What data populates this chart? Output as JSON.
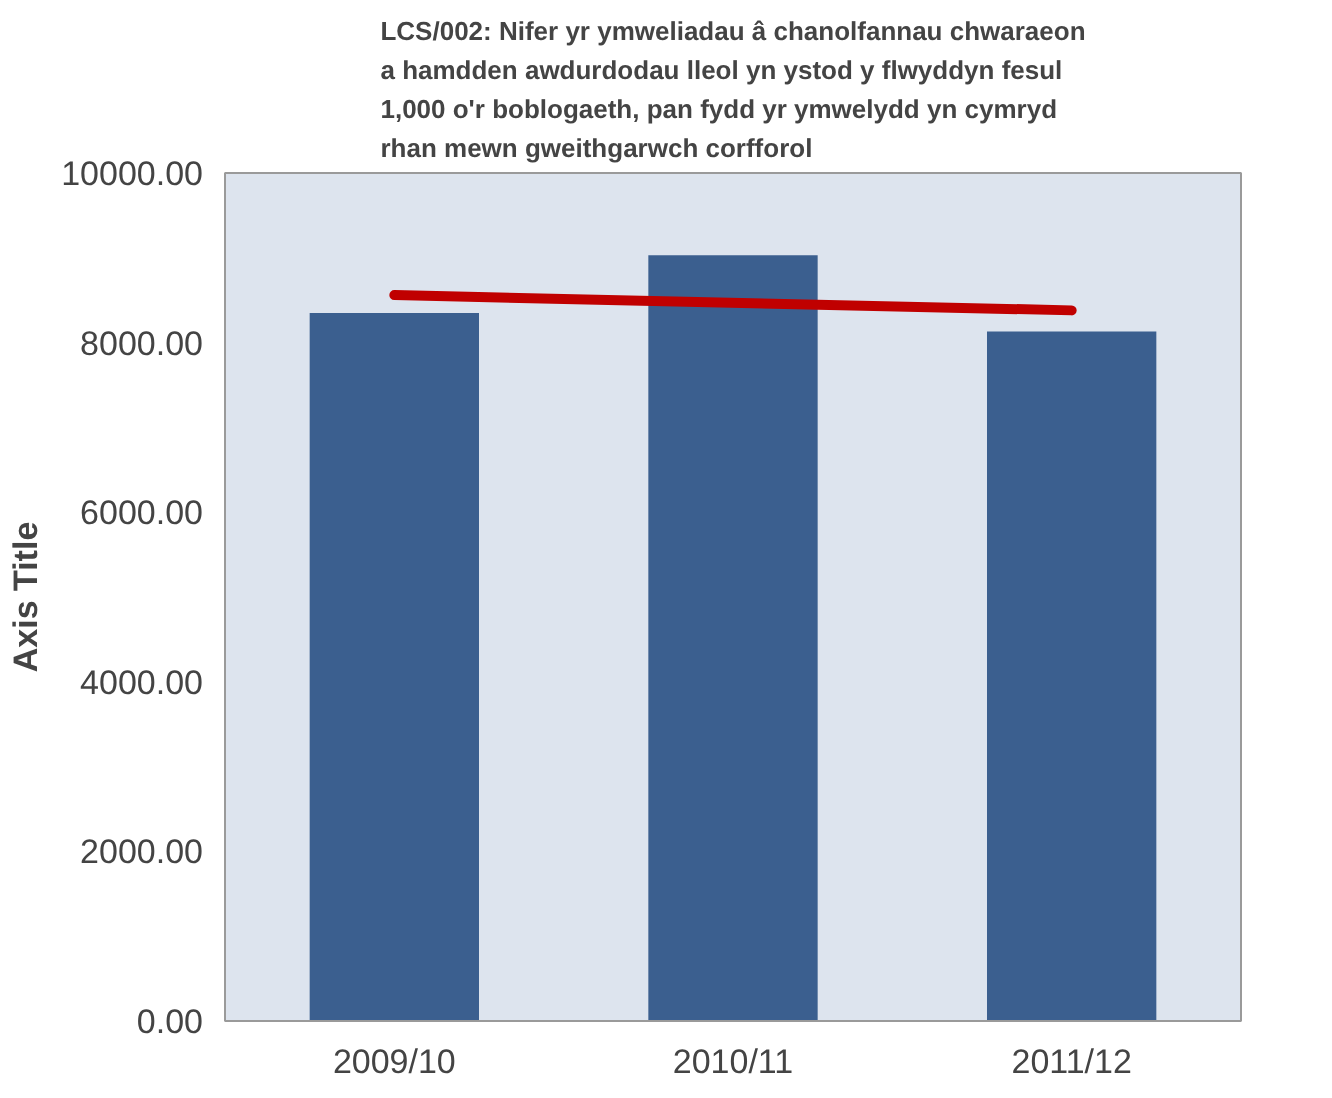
{
  "chart_data": {
    "type": "bar",
    "title": "LCS/002: Nifer yr ymweliadau â chanolfannau chwaraeon a hamdden awdurdodau lleol yn ystod y flwyddyn fesul 1,000 o'r boblogaeth, pan fydd yr ymwelydd yn cymryd rhan mewn gweithgarwch corfforol",
    "ylabel": "Axis Title",
    "categories": [
      "2009/10",
      "2010/11",
      "2011/12"
    ],
    "series": [
      {
        "color": "#3b5f8f",
        "values": [
          8350,
          9030,
          8130
        ]
      },
      {
        "type": "line",
        "color": "#c00000",
        "x": [
          "2009/10",
          "2011/12"
        ],
        "values": [
          8560,
          8380
        ]
      }
    ],
    "ylim": [
      0,
      10000
    ],
    "yticks": [
      {
        "value": 0,
        "label": "0.00"
      },
      {
        "value": 2000,
        "label": "2000.00"
      },
      {
        "value": 4000,
        "label": "4000.00"
      },
      {
        "value": 6000,
        "label": "6000.00"
      },
      {
        "value": 8000,
        "label": "8000.00"
      },
      {
        "value": 10000,
        "label": "10000.00"
      }
    ],
    "grid": false
  }
}
